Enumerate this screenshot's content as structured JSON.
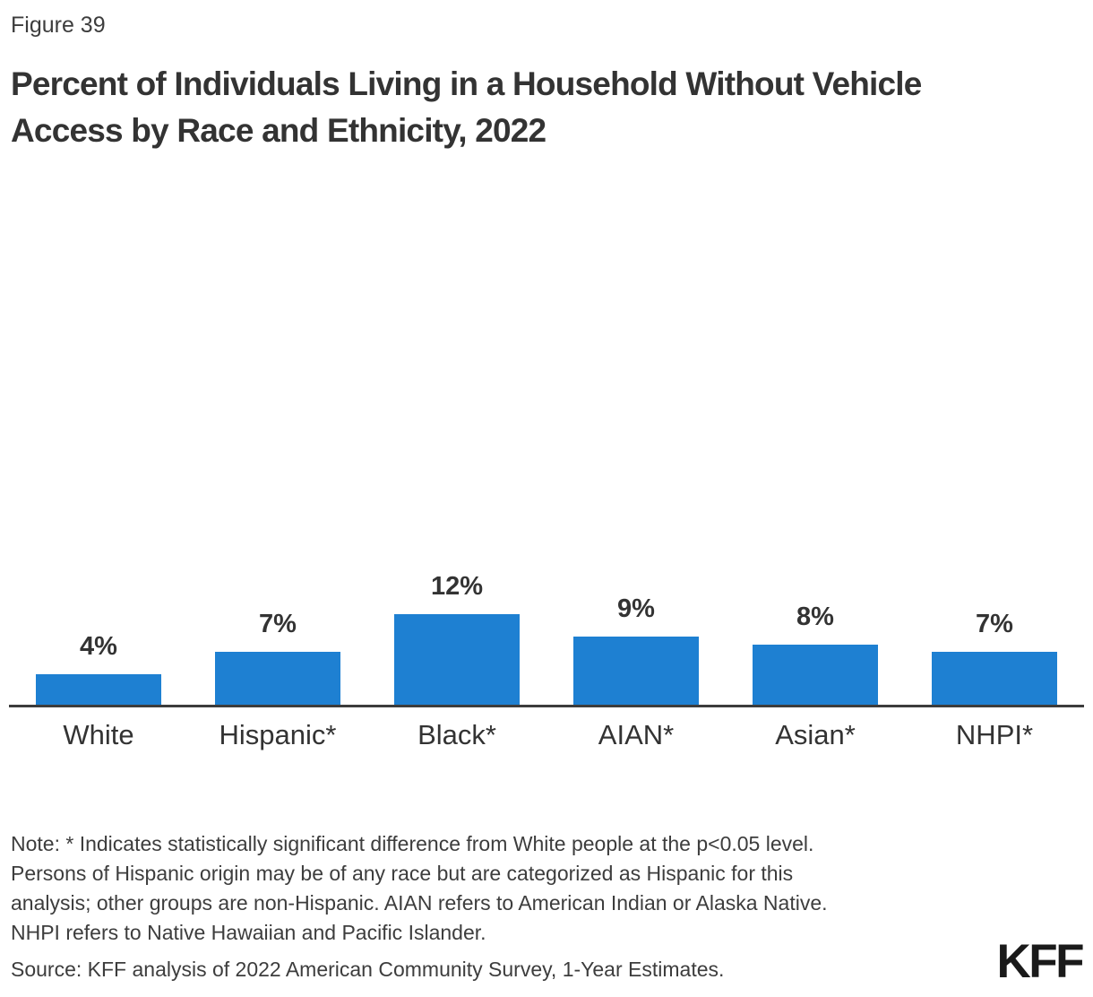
{
  "figure_label": "Figure 39",
  "title": {
    "line1": "Percent of Individuals Living in a Household Without Vehicle",
    "line2": "Access by Race and Ethnicity, 2022"
  },
  "chart_data": {
    "type": "bar",
    "title": "Percent of Individuals Living in a Household Without Vehicle Access by Race and Ethnicity, 2022",
    "categories": [
      "White",
      "Hispanic*",
      "Black*",
      "AIAN*",
      "Asian*",
      "NHPI*"
    ],
    "values": [
      4,
      7,
      12,
      9,
      8,
      7
    ],
    "value_labels": [
      "4%",
      "7%",
      "12%",
      "9%",
      "8%",
      "7%"
    ],
    "unit": "percent",
    "xlabel": "",
    "ylabel": "",
    "grid": false,
    "legend": false,
    "bar_color": "#1E80D2",
    "axis_line_color": "#3c3c3c"
  },
  "note_lines": [
    "Note: * Indicates statistically significant difference from White people at the p<0.05 level.",
    "Persons of Hispanic origin may be of any race but are categorized as Hispanic for this",
    "analysis; other groups are non-Hispanic. AIAN refers to American Indian or Alaska Native.",
    "NHPI refers to Native Hawaiian and Pacific Islander."
  ],
  "source": "Source: KFF analysis of 2022 American Community Survey, 1-Year Estimates.",
  "logo": "KFF",
  "colors": {
    "bar": "#1E80D2",
    "title_text": "#333333",
    "body_text": "#3d3d3d",
    "axis_line": "#3c3c3c",
    "logo": "#1a1a1a",
    "background": "#ffffff"
  }
}
